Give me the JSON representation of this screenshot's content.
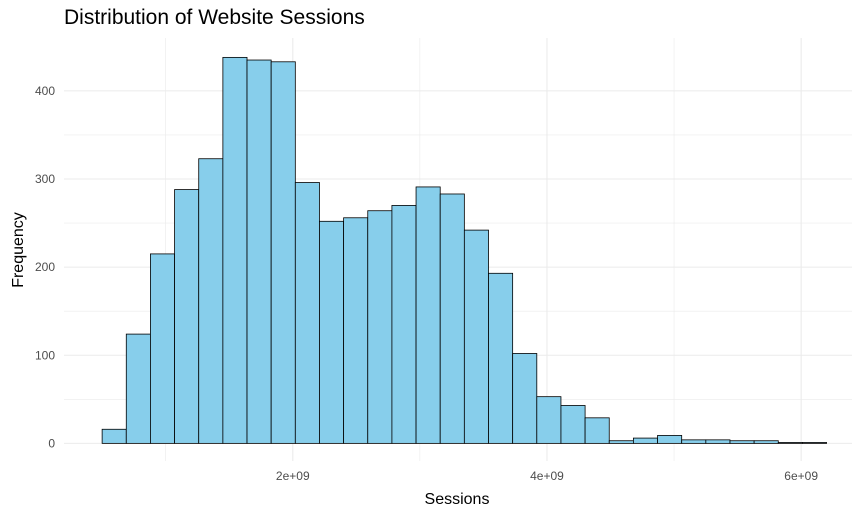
{
  "chart_data": {
    "type": "histogram",
    "title": "Distribution of Website Sessions",
    "xlabel": "Sessions",
    "ylabel": "Frequency",
    "bar_fill": "#87CEEB",
    "bar_stroke": "#000000",
    "grid_color": "#EBEBEB",
    "grid": true,
    "xlim": [
      200000000,
      6400000000
    ],
    "ylim": [
      -20,
      460
    ],
    "x_ticks": [
      {
        "value": 2000000000,
        "label": "2e+09"
      },
      {
        "value": 4000000000,
        "label": "4e+09"
      },
      {
        "value": 6000000000,
        "label": "6e+09"
      }
    ],
    "x_minor_ticks": [
      1000000000,
      3000000000,
      5000000000
    ],
    "y_ticks": [
      {
        "value": 0,
        "label": "0"
      },
      {
        "value": 100,
        "label": "100"
      },
      {
        "value": 200,
        "label": "200"
      },
      {
        "value": 300,
        "label": "300"
      },
      {
        "value": 400,
        "label": "400"
      }
    ],
    "y_minor_ticks": [
      50,
      150,
      250,
      350
    ],
    "bin_start": 500000000,
    "bin_width": 190000000,
    "values": [
      16,
      124,
      215,
      288,
      323,
      438,
      435,
      433,
      296,
      252,
      256,
      264,
      270,
      291,
      283,
      242,
      193,
      102,
      53,
      43,
      29,
      3,
      6,
      9,
      4,
      4,
      3,
      3,
      1,
      1
    ]
  }
}
